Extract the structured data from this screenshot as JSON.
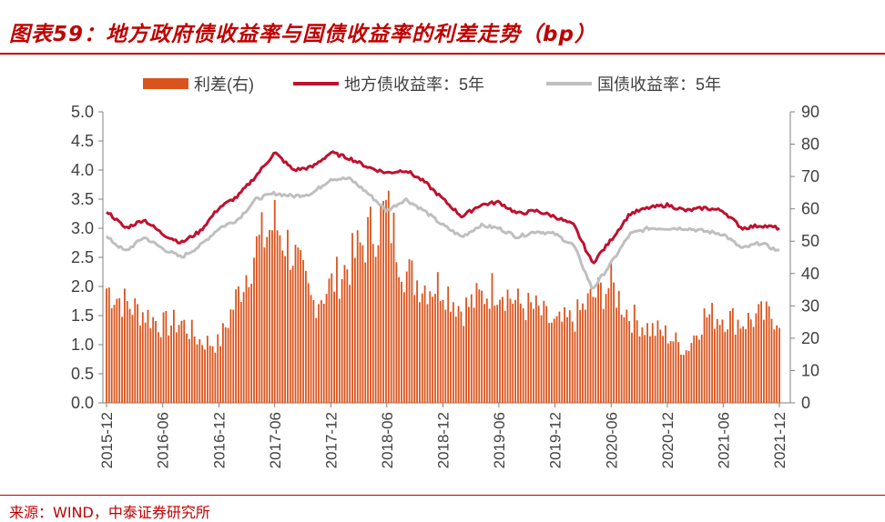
{
  "title": "图表59：地方政府债收益率与国债收益率的利差走势（bp）",
  "source": "来源：WIND，中泰证券研究所",
  "colors": {
    "bar": "#d9541d",
    "local": "#c0102f",
    "treasury": "#bfbfbf",
    "accent": "#c00000"
  },
  "chart_data": {
    "type": "bar+line",
    "legend_position": "top",
    "grid": false,
    "x_tick_labels": [
      "2015-12",
      "2016-06",
      "2016-12",
      "2017-06",
      "2017-12",
      "2018-06",
      "2018-12",
      "2019-06",
      "2019-12",
      "2020-06",
      "2020-12",
      "2021-06",
      "2021-12"
    ],
    "y_left": {
      "min": 0,
      "max": 5,
      "ticks": [
        "0.0",
        "0.5",
        "1.0",
        "1.5",
        "2.0",
        "2.5",
        "3.0",
        "3.5",
        "4.0",
        "4.5",
        "5.0"
      ]
    },
    "y_right": {
      "min": 0,
      "max": 90,
      "ticks": [
        "0",
        "10",
        "20",
        "30",
        "40",
        "50",
        "60",
        "70",
        "80",
        "90"
      ]
    },
    "series": [
      {
        "name": "利差(右)",
        "kind": "bar",
        "axis": "right",
        "x": [
          "2015-12",
          "2016-02",
          "2016-04",
          "2016-06",
          "2016-08",
          "2016-10",
          "2016-12",
          "2017-02",
          "2017-04",
          "2017-06",
          "2017-08",
          "2017-10",
          "2017-12",
          "2018-02",
          "2018-04",
          "2018-06",
          "2018-08",
          "2018-10",
          "2018-12",
          "2019-02",
          "2019-04",
          "2019-06",
          "2019-08",
          "2019-10",
          "2019-12",
          "2020-02",
          "2020-04",
          "2020-06",
          "2020-08",
          "2020-10",
          "2020-12",
          "2021-02",
          "2021-04",
          "2021-06",
          "2021-08",
          "2021-10",
          "2021-12"
        ],
        "values": [
          37,
          32,
          29,
          25,
          26,
          20,
          19,
          35,
          50,
          58,
          48,
          32,
          38,
          45,
          54,
          62,
          42,
          38,
          38,
          30,
          34,
          38,
          32,
          30,
          25,
          27,
          34,
          38,
          28,
          24,
          22,
          17,
          28,
          28,
          26,
          28,
          28
        ]
      },
      {
        "name": "地方债收益率：5年",
        "kind": "line",
        "axis": "left",
        "x": [
          "2015-12",
          "2016-02",
          "2016-04",
          "2016-06",
          "2016-08",
          "2016-10",
          "2016-12",
          "2017-02",
          "2017-04",
          "2017-06",
          "2017-08",
          "2017-10",
          "2017-12",
          "2018-02",
          "2018-04",
          "2018-06",
          "2018-08",
          "2018-10",
          "2018-12",
          "2019-02",
          "2019-04",
          "2019-06",
          "2019-08",
          "2019-10",
          "2019-12",
          "2020-02",
          "2020-04",
          "2020-06",
          "2020-08",
          "2020-10",
          "2020-12",
          "2021-02",
          "2021-04",
          "2021-06",
          "2021-08",
          "2021-10",
          "2021-12"
        ],
        "values": [
          3.3,
          3.0,
          3.15,
          2.9,
          2.75,
          2.95,
          3.35,
          3.55,
          3.9,
          4.3,
          4.0,
          4.05,
          4.3,
          4.2,
          4.05,
          3.95,
          4.0,
          3.8,
          3.5,
          3.2,
          3.4,
          3.45,
          3.25,
          3.3,
          3.2,
          3.05,
          2.4,
          2.8,
          3.25,
          3.35,
          3.4,
          3.3,
          3.35,
          3.3,
          3.0,
          3.05,
          3.0
        ]
      },
      {
        "name": "国债收益率：5年",
        "kind": "line",
        "axis": "left",
        "x": [
          "2015-12",
          "2016-02",
          "2016-04",
          "2016-06",
          "2016-08",
          "2016-10",
          "2016-12",
          "2017-02",
          "2017-04",
          "2017-06",
          "2017-08",
          "2017-10",
          "2017-12",
          "2018-02",
          "2018-04",
          "2018-06",
          "2018-08",
          "2018-10",
          "2018-12",
          "2019-02",
          "2019-04",
          "2019-06",
          "2019-08",
          "2019-10",
          "2019-12",
          "2020-02",
          "2020-04",
          "2020-06",
          "2020-08",
          "2020-10",
          "2020-12",
          "2021-02",
          "2021-04",
          "2021-06",
          "2021-08",
          "2021-10",
          "2021-12"
        ],
        "values": [
          2.85,
          2.6,
          2.85,
          2.65,
          2.5,
          2.7,
          3.0,
          3.15,
          3.5,
          3.6,
          3.55,
          3.6,
          3.85,
          3.85,
          3.6,
          3.3,
          3.5,
          3.3,
          3.05,
          2.85,
          3.05,
          3.0,
          2.85,
          2.95,
          2.9,
          2.7,
          1.95,
          2.4,
          2.9,
          3.0,
          3.0,
          3.0,
          2.95,
          2.9,
          2.65,
          2.75,
          2.6
        ]
      }
    ]
  }
}
